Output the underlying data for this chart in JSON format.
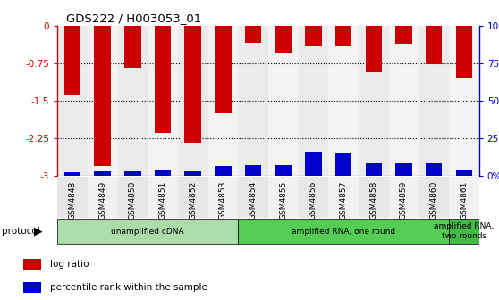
{
  "title": "GDS222 / H003053_01",
  "samples": [
    "GSM4848",
    "GSM4849",
    "GSM4850",
    "GSM4851",
    "GSM4852",
    "GSM4853",
    "GSM4854",
    "GSM4855",
    "GSM4856",
    "GSM4857",
    "GSM4858",
    "GSM4859",
    "GSM4860",
    "GSM4861"
  ],
  "log_ratio": [
    -1.38,
    -2.82,
    -0.85,
    -2.15,
    -2.35,
    -1.75,
    -0.35,
    -0.55,
    -0.42,
    -0.4,
    -0.93,
    -0.37,
    -0.78,
    -1.05
  ],
  "percentile_rank": [
    2,
    3,
    3,
    4,
    3,
    6,
    7,
    7,
    16,
    15,
    8,
    8,
    8,
    4
  ],
  "bar_color_red": "#cc0000",
  "bar_color_blue": "#0000cc",
  "ylim_left": [
    -3.0,
    0.0
  ],
  "ylim_right": [
    0,
    100
  ],
  "yticks_left": [
    0.0,
    -0.75,
    -1.5,
    -2.25,
    -3.0
  ],
  "yticks_right": [
    0,
    25,
    50,
    75,
    100
  ],
  "ytick_labels_left": [
    "0",
    "-0.75",
    "-1.5",
    "-2.25",
    "-3"
  ],
  "ytick_labels_right": [
    "0%",
    "25",
    "50",
    "75",
    "100%"
  ],
  "protocol_groups": [
    {
      "label": "unamplified cDNA",
      "start": 0,
      "end": 5,
      "color": "#aaddaa"
    },
    {
      "label": "amplified RNA, one round",
      "start": 6,
      "end": 12,
      "color": "#55cc55"
    },
    {
      "label": "amplified RNA,\ntwo rounds",
      "start": 13,
      "end": 13,
      "color": "#44bb44"
    }
  ],
  "legend_items": [
    {
      "label": "log ratio",
      "color": "#cc0000"
    },
    {
      "label": "percentile rank within the sample",
      "color": "#0000cc"
    }
  ],
  "bar_width": 0.55,
  "figsize": [
    5.58,
    3.36
  ],
  "dpi": 100,
  "bg_colors": [
    "#d8d8d8",
    "#e8e8e8"
  ]
}
